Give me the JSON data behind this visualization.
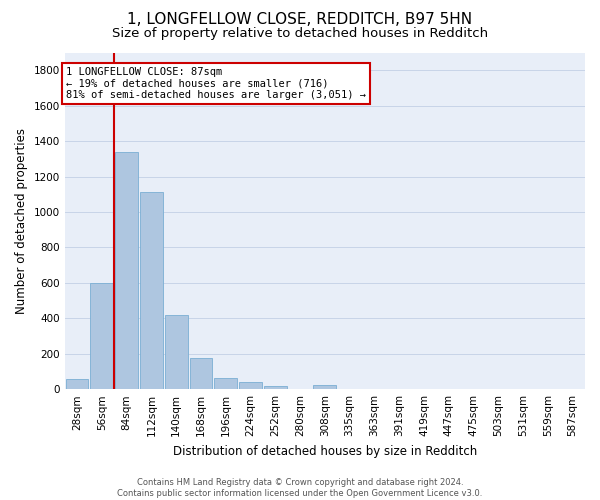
{
  "title": "1, LONGFELLOW CLOSE, REDDITCH, B97 5HN",
  "subtitle": "Size of property relative to detached houses in Redditch",
  "xlabel": "Distribution of detached houses by size in Redditch",
  "ylabel": "Number of detached properties",
  "footer_line1": "Contains HM Land Registry data © Crown copyright and database right 2024.",
  "footer_line2": "Contains public sector information licensed under the Open Government Licence v3.0.",
  "bin_labels": [
    "28sqm",
    "56sqm",
    "84sqm",
    "112sqm",
    "140sqm",
    "168sqm",
    "196sqm",
    "224sqm",
    "252sqm",
    "280sqm",
    "308sqm",
    "335sqm",
    "363sqm",
    "391sqm",
    "419sqm",
    "447sqm",
    "475sqm",
    "503sqm",
    "531sqm",
    "559sqm",
    "587sqm"
  ],
  "bar_values": [
    60,
    600,
    1340,
    1115,
    420,
    175,
    65,
    38,
    20,
    0,
    25,
    0,
    0,
    0,
    0,
    0,
    0,
    0,
    0,
    0,
    0
  ],
  "bar_color": "#aec6e0",
  "bar_edge_color": "#7bafd4",
  "property_bin_index": 2,
  "annotation_line1": "1 LONGFELLOW CLOSE: 87sqm",
  "annotation_line2": "← 19% of detached houses are smaller (716)",
  "annotation_line3": "81% of semi-detached houses are larger (3,051) →",
  "vline_color": "#cc0000",
  "annotation_box_edgecolor": "#cc0000",
  "ylim": [
    0,
    1900
  ],
  "yticks": [
    0,
    200,
    400,
    600,
    800,
    1000,
    1200,
    1400,
    1600,
    1800
  ],
  "grid_color": "#c8d4e8",
  "bg_color": "#e8eef8",
  "title_fontsize": 11,
  "subtitle_fontsize": 9.5,
  "xlabel_fontsize": 8.5,
  "ylabel_fontsize": 8.5,
  "tick_fontsize": 7.5,
  "annotation_fontsize": 7.5,
  "footer_fontsize": 6.0
}
